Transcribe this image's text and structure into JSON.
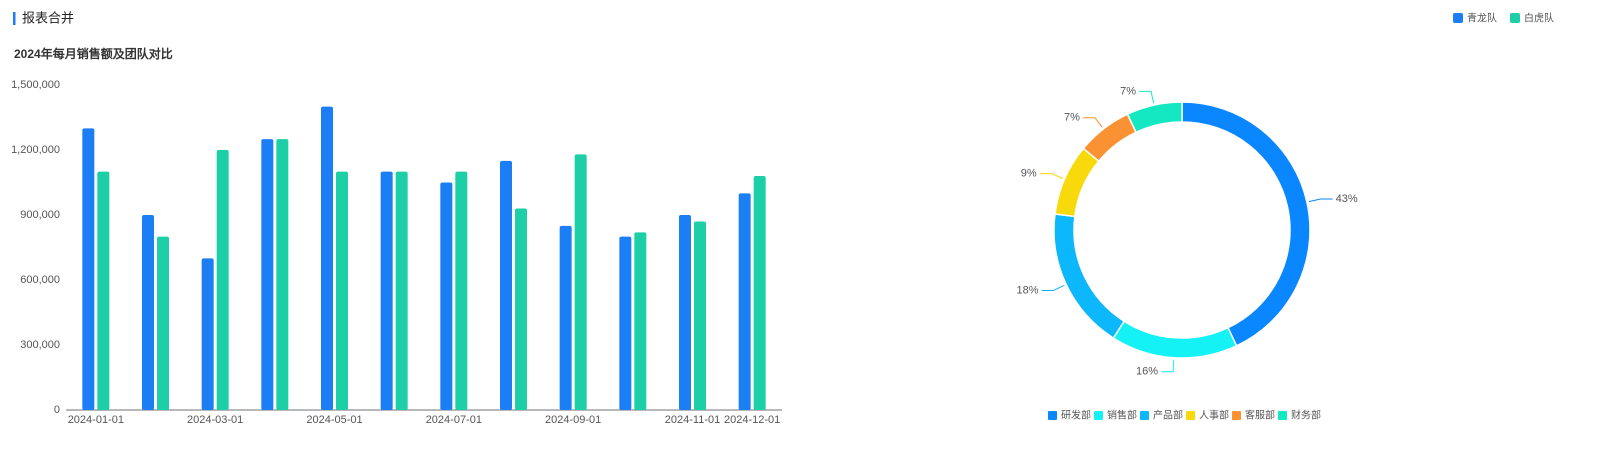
{
  "header": {
    "title": "报表合并"
  },
  "chart_data": [
    {
      "type": "bar",
      "title": "2024年每月销售额及团队对比",
      "categories": [
        "2024-01-01",
        null,
        "2024-03-01",
        null,
        "2024-05-01",
        null,
        "2024-07-01",
        null,
        "2024-09-01",
        null,
        "2024-11-01",
        "2024-12-01"
      ],
      "series": [
        {
          "name": "青龙队",
          "color": "#1c7ef5",
          "values": [
            1300000,
            900000,
            700000,
            1250000,
            1400000,
            1100000,
            1050000,
            1150000,
            850000,
            800000,
            900000,
            1000000
          ]
        },
        {
          "name": "白虎队",
          "color": "#1dcfa6",
          "values": [
            1100000,
            800000,
            1200000,
            1250000,
            1100000,
            1100000,
            1100000,
            930000,
            1180000,
            820000,
            870000,
            1080000
          ]
        }
      ],
      "ylim": [
        0,
        1500000
      ],
      "yticks": [
        0,
        {
          "value": 300000,
          "label": "300,000"
        },
        {
          "value": 600000,
          "label": "600,000"
        },
        {
          "value": 900000,
          "label": "900,000"
        },
        {
          "value": 1200000,
          "label": "1,200,000"
        },
        {
          "value": 1500000,
          "label": "1,500,000"
        }
      ],
      "grid": false,
      "legend": "top-right"
    },
    {
      "type": "pie",
      "categories": [
        "研发部",
        "销售部",
        "产品部",
        "人事部",
        "客服部",
        "财务部"
      ],
      "values": [
        43,
        16,
        18,
        9,
        7,
        7
      ],
      "value_labels": [
        "43%",
        "16%",
        "18%",
        "9%",
        "7%",
        "7%"
      ],
      "colors": [
        "#0a87ff",
        "#14f2f5",
        "#0cb8fb",
        "#f8da0c",
        "#fa9233",
        "#13e8c3"
      ],
      "legend": "bottom"
    }
  ]
}
